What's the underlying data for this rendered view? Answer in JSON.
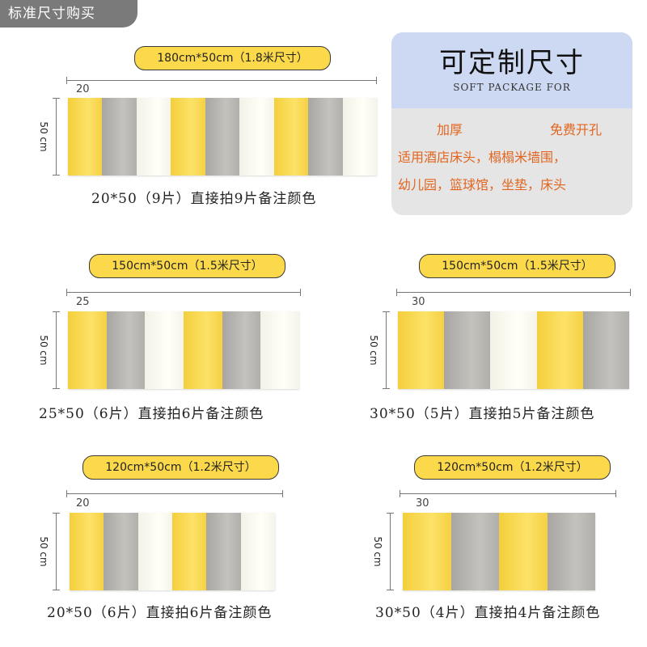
{
  "header_tag": "标准尺寸购买",
  "card": {
    "title": "可定制尺寸",
    "subtitle": "SOFT PACKAGE FOR",
    "feature_left": "加厚",
    "feature_right": "免费开孔",
    "line1": "适用酒店床头，榻榻米墙围，",
    "line2": "幼儿园，篮球馆，坐垫，床头"
  },
  "height_label": "50 cm",
  "sections": [
    {
      "title": "180cm*50cm（1.8米尺寸）",
      "width_label": "20",
      "colors": [
        "yellow",
        "gray",
        "white",
        "yellow",
        "gray",
        "white",
        "yellow",
        "gray",
        "white"
      ],
      "caption": "20*50（9片）直接拍9片备注颜色"
    },
    {
      "title": "150cm*50cm（1.5米尺寸）",
      "width_label": "25",
      "colors": [
        "yellow",
        "gray",
        "white",
        "yellow",
        "gray",
        "white"
      ],
      "caption": "25*50（6片）直接拍6片备注颜色"
    },
    {
      "title": "150cm*50cm（1.5米尺寸）",
      "width_label": "30",
      "colors": [
        "yellow",
        "gray",
        "white",
        "yellow",
        "gray"
      ],
      "caption": "30*50（5片）直接拍5片备注颜色"
    },
    {
      "title": "120cm*50cm（1.2米尺寸）",
      "width_label": "20",
      "colors": [
        "yellow",
        "gray",
        "white",
        "yellow",
        "gray",
        "white"
      ],
      "caption": "20*50（6片）直接拍6片备注颜色"
    },
    {
      "title": "120cm*50cm（1.2米尺寸）",
      "width_label": "30",
      "colors": [
        "yellow",
        "gray",
        "yellow",
        "gray"
      ],
      "caption": "30*50（4片）直接拍4片备注颜色"
    }
  ]
}
